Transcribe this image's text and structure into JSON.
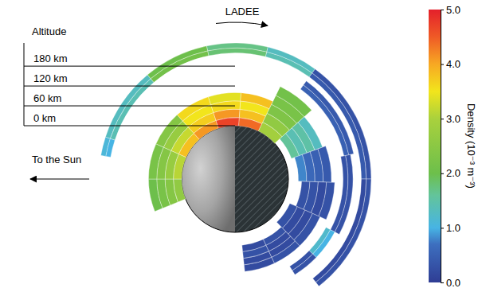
{
  "chart_data": {
    "type": "polar_heatmap",
    "orbit_label": "LADEE",
    "sun_label": "To the Sun",
    "r_title": "Altitude",
    "rlim": [
      0,
      250
    ],
    "rticks": [
      {
        "value": 0,
        "label": "0 km"
      },
      {
        "value": 60,
        "label": "60 km"
      },
      {
        "value": 120,
        "label": "120 km"
      },
      {
        "value": 180,
        "label": "180 km"
      }
    ],
    "sectors": [
      {
        "angle": [
          -112,
          -90
        ],
        "altitudes": [
          0,
          25,
          50,
          75,
          100
        ],
        "densities": [
          2.6,
          2.4,
          2.2,
          2.0
        ]
      },
      {
        "angle": [
          -90,
          -66
        ],
        "altitudes": [
          0,
          25,
          50,
          75,
          100
        ],
        "densities": [
          3.1,
          2.7,
          2.4,
          2.2
        ]
      },
      {
        "angle": [
          -66,
          -42
        ],
        "altitudes": [
          0,
          25,
          50,
          75,
          100
        ],
        "densities": [
          3.8,
          3.2,
          2.7,
          2.4
        ]
      },
      {
        "angle": [
          -42,
          -18
        ],
        "altitudes": [
          0,
          25,
          50,
          75,
          100
        ],
        "densities": [
          4.1,
          3.7,
          3.5,
          3.6
        ]
      },
      {
        "angle": [
          -18,
          4
        ],
        "altitudes": [
          0,
          25,
          50,
          75,
          100
        ],
        "densities": [
          4.7,
          4.1,
          3.6,
          3.4
        ]
      },
      {
        "angle": [
          4,
          26
        ],
        "altitudes": [
          0,
          25,
          50,
          75,
          100
        ],
        "densities": [
          4.4,
          3.8,
          3.5,
          3.8
        ]
      },
      {
        "angle": [
          26,
          48
        ],
        "altitudes": [
          0,
          30,
          60,
          90,
          120,
          150
        ],
        "densities": [
          2.9,
          2.6,
          2.3,
          2.2,
          2.1
        ]
      },
      {
        "angle": [
          48,
          70
        ],
        "altitudes": [
          20,
          45,
          70,
          95,
          120
        ],
        "densities": [
          1.6,
          1.4,
          1.5,
          1.3
        ]
      },
      {
        "angle": [
          70,
          92
        ],
        "altitudes": [
          30,
          55,
          80,
          105,
          130
        ],
        "densities": [
          0.8,
          0.6,
          0.5,
          0.4
        ]
      },
      {
        "angle": [
          92,
          114
        ],
        "altitudes": [
          40,
          65,
          90,
          115,
          140
        ],
        "densities": [
          0.3,
          0.3,
          0.2,
          0.3
        ]
      },
      {
        "angle": [
          114,
          136
        ],
        "altitudes": [
          20,
          45,
          70,
          95,
          120
        ],
        "densities": [
          0.3,
          0.2,
          0.2,
          0.3
        ]
      },
      {
        "angle": [
          136,
          155
        ],
        "altitudes": [
          40,
          60,
          80,
          100,
          120
        ],
        "densities": [
          0.3,
          0.2,
          0.2,
          0.3
        ]
      },
      {
        "angle": [
          155,
          174
        ],
        "altitudes": [
          40,
          60,
          80,
          100,
          120
        ],
        "densities": [
          0.2,
          0.3,
          0.2,
          0.2
        ]
      },
      {
        "angle": [
          36,
          78
        ],
        "altitudes": [
          175,
          190,
          205
        ],
        "densities": [
          0.5,
          0.4
        ]
      },
      {
        "angle": [
          78,
          118
        ],
        "altitudes": [
          165,
          180,
          195
        ],
        "densities": [
          0.3,
          0.3
        ]
      },
      {
        "angle": [
          118,
          134
        ],
        "altitudes": [
          150,
          165,
          180
        ],
        "densities": [
          1.2,
          1.0
        ]
      },
      {
        "angle": [
          134,
          148
        ],
        "altitudes": [
          150,
          165,
          180
        ],
        "densities": [
          0.3,
          0.3
        ]
      },
      {
        "angle": [
          -80,
          -72
        ],
        "altitudes": [
          220,
          235,
          250
        ],
        "densities": [
          1.0,
          1.1
        ]
      },
      {
        "angle": [
          -72,
          -40
        ],
        "altitudes": [
          220,
          235,
          250
        ],
        "densities": [
          1.4,
          1.3
        ]
      },
      {
        "angle": [
          -40,
          -12
        ],
        "altitudes": [
          220,
          235,
          250
        ],
        "densities": [
          2.1,
          2.0
        ]
      },
      {
        "angle": [
          -12,
          14
        ],
        "altitudes": [
          220,
          235,
          250
        ],
        "densities": [
          1.8,
          1.7
        ]
      },
      {
        "angle": [
          14,
          36
        ],
        "altitudes": [
          220,
          235,
          250
        ],
        "densities": [
          1.4,
          1.3
        ]
      },
      {
        "angle": [
          36,
          90
        ],
        "altitudes": [
          220,
          235,
          250
        ],
        "densities": [
          0.4,
          0.3
        ]
      },
      {
        "angle": [
          90,
          142
        ],
        "altitudes": [
          220,
          235,
          250
        ],
        "densities": [
          0.2,
          0.3
        ]
      }
    ],
    "colorbar": {
      "title": "Density (10⁻³ m⁻³)",
      "range": [
        0,
        5
      ],
      "ticks": [
        {
          "value": 0,
          "label": "0.0"
        },
        {
          "value": 1,
          "label": "1.0"
        },
        {
          "value": 2,
          "label": "2.0"
        },
        {
          "value": 3,
          "label": "3.0"
        },
        {
          "value": 4,
          "label": "4.0"
        },
        {
          "value": 5,
          "label": "5.0"
        }
      ]
    }
  }
}
